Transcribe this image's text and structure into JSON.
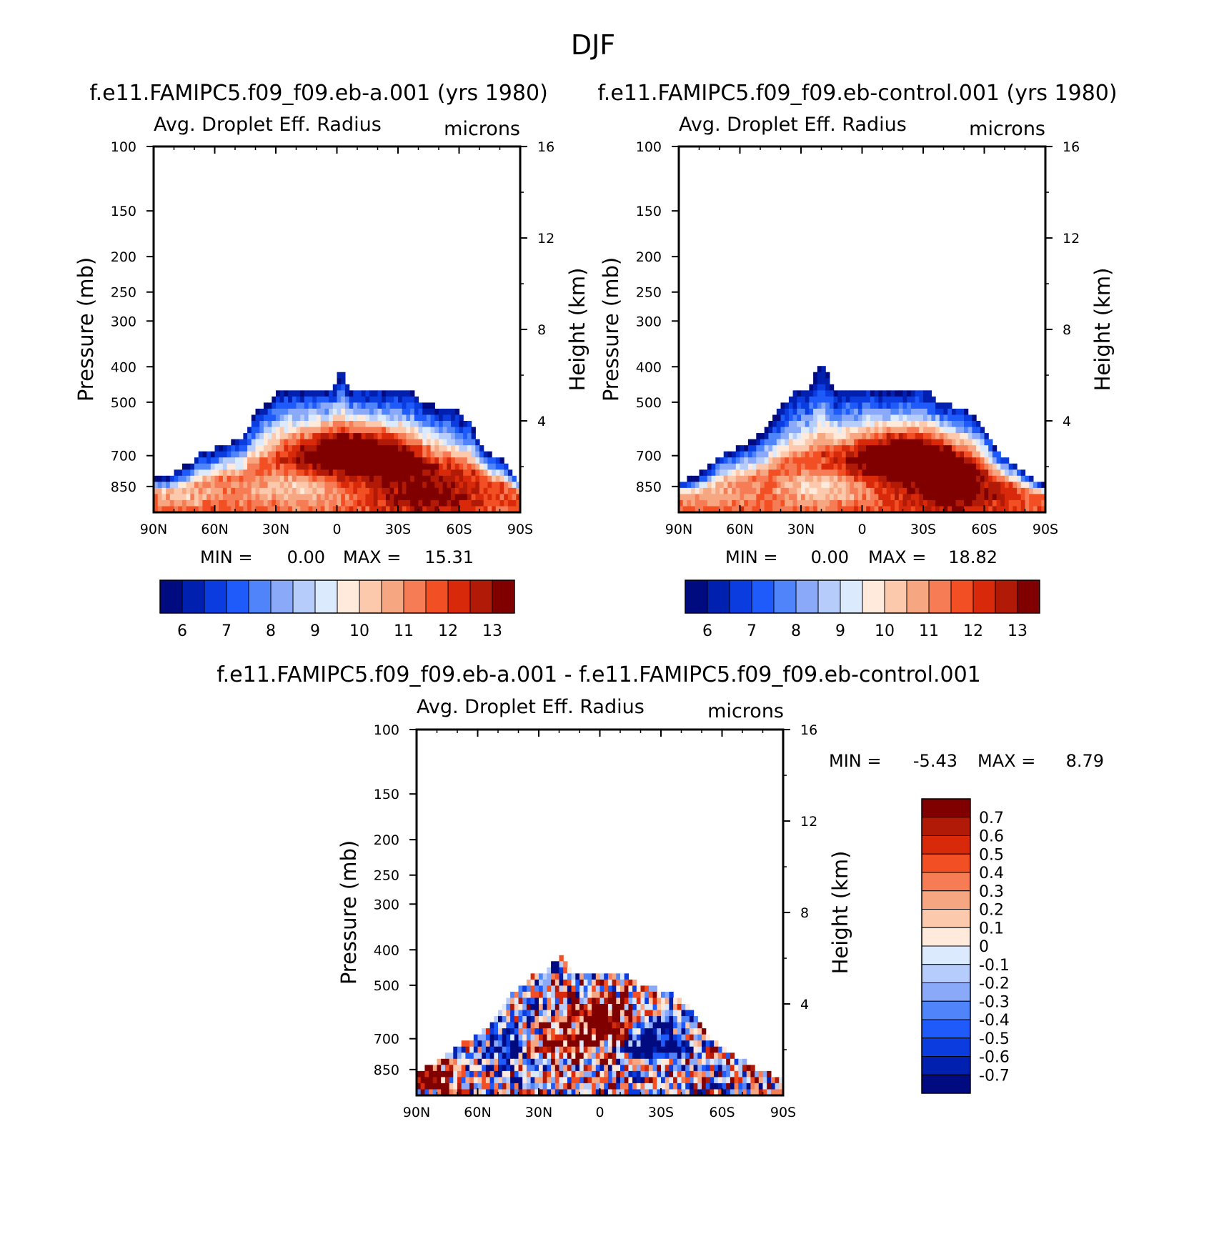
{
  "page": {
    "title": "DJF",
    "diff_title": "f.e11.FAMIPC5.f09_f09.eb-a.001 - f.e11.FAMIPC5.f09_f09.eb-control.001"
  },
  "chart_data": [
    {
      "type": "heatmap",
      "id": "panel1",
      "title": "f.e11.FAMIPC5.f09_f09.eb-a.001 (yrs 1980)",
      "left_string": "Avg. Droplet Eff. Radius",
      "right_string": "microns",
      "xlabel": "",
      "ylabel": "Pressure (mb)",
      "ylabel_right": "Height (km)",
      "x_ticks": [
        "90N",
        "60N",
        "30N",
        "0",
        "30S",
        "60S",
        "90S"
      ],
      "y_ticks": [
        "100",
        "150",
        "200",
        "250",
        "300",
        "400",
        "500",
        "700",
        "850"
      ],
      "y_ticks_right": [
        "16",
        "12",
        "8",
        "4"
      ],
      "ylim": [
        1000,
        100
      ],
      "stats": {
        "min_label": "MIN =",
        "min": "0.00",
        "max_label": "MAX =",
        "max": "15.31"
      },
      "colorbar": {
        "orientation": "horizontal",
        "labels": [
          "6",
          "7",
          "8",
          "9",
          "10",
          "11",
          "12",
          "13"
        ],
        "levels": [
          5.5,
          6,
          6.5,
          7,
          7.5,
          8,
          8.5,
          9,
          9.5,
          10,
          10.5,
          11,
          11.5,
          12,
          12.5,
          13,
          13.5
        ]
      },
      "cloud_top_pressure_mb": [
        800,
        800,
        790,
        760,
        740,
        720,
        680,
        680,
        660,
        650,
        640,
        620,
        560,
        520,
        500,
        470,
        460,
        460,
        460,
        460,
        460,
        460,
        460,
        400,
        460,
        460,
        460,
        460,
        460,
        460,
        460,
        460,
        470,
        500,
        500,
        520,
        520,
        520,
        560,
        560,
        640,
        680,
        700,
        720,
        780,
        820
      ],
      "warm_core": [
        {
          "lat": 3,
          "p": 650,
          "peak": 13.5
        },
        {
          "lat": -22,
          "p": 695,
          "peak": 13.3
        }
      ],
      "near_surface_max": {
        "lat": -45,
        "value": 12.5
      }
    },
    {
      "type": "heatmap",
      "id": "panel2",
      "title": "f.e11.FAMIPC5.f09_f09.eb-control.001 (yrs 1980)",
      "left_string": "Avg. Droplet Eff. Radius",
      "right_string": "microns",
      "xlabel": "",
      "ylabel": "Pressure (mb)",
      "ylabel_right": "Height (km)",
      "x_ticks": [
        "90N",
        "60N",
        "30N",
        "0",
        "30S",
        "60S",
        "90S"
      ],
      "y_ticks": [
        "100",
        "150",
        "200",
        "250",
        "300",
        "400",
        "500",
        "700",
        "850"
      ],
      "y_ticks_right": [
        "16",
        "12",
        "8",
        "4"
      ],
      "ylim": [
        1000,
        100
      ],
      "stats": {
        "min_label": "MIN =",
        "min": "0.00",
        "max_label": "MAX =",
        "max": "18.82"
      },
      "colorbar": {
        "orientation": "horizontal",
        "labels": [
          "6",
          "7",
          "8",
          "9",
          "10",
          "11",
          "12",
          "13"
        ],
        "levels": [
          5.5,
          6,
          6.5,
          7,
          7.5,
          8,
          8.5,
          9,
          9.5,
          10,
          10.5,
          11,
          11.5,
          12,
          12.5,
          13,
          13.5
        ]
      },
      "cloud_top_pressure_mb": [
        820,
        810,
        800,
        770,
        740,
        700,
        680,
        670,
        650,
        640,
        610,
        580,
        540,
        500,
        470,
        460,
        460,
        400,
        400,
        460,
        460,
        460,
        460,
        460,
        460,
        460,
        460,
        460,
        460,
        460,
        460,
        470,
        500,
        500,
        520,
        520,
        540,
        560,
        620,
        680,
        700,
        730,
        760,
        790,
        820,
        840
      ],
      "warm_core": [
        {
          "lat": -15,
          "p": 680,
          "peak": 13.5
        },
        {
          "lat": -35,
          "p": 720,
          "peak": 13.2
        }
      ],
      "near_surface_max": {
        "lat": -45,
        "value": 12.5
      }
    },
    {
      "type": "heatmap",
      "id": "panel3",
      "title": "f.e11.FAMIPC5.f09_f09.eb-a.001 - f.e11.FAMIPC5.f09_f09.eb-control.001",
      "left_string": "Avg. Droplet Eff. Radius",
      "right_string": "microns",
      "xlabel": "",
      "ylabel": "Pressure (mb)",
      "ylabel_right": "Height (km)",
      "x_ticks": [
        "90N",
        "60N",
        "30N",
        "0",
        "30S",
        "60S",
        "90S"
      ],
      "y_ticks": [
        "100",
        "150",
        "200",
        "250",
        "300",
        "400",
        "500",
        "700",
        "850"
      ],
      "y_ticks_right": [
        "16",
        "12",
        "8",
        "4"
      ],
      "ylim": [
        1000,
        100
      ],
      "stats": {
        "min_label": "MIN =",
        "min": "-5.43",
        "max_label": "MAX =",
        "max": "8.79"
      },
      "colorbar": {
        "orientation": "vertical",
        "labels": [
          "0.7",
          "0.6",
          "0.5",
          "0.4",
          "0.3",
          "0.2",
          "0.1",
          "0",
          "-0.1",
          "-0.2",
          "-0.3",
          "-0.4",
          "-0.5",
          "-0.6",
          "-0.7"
        ],
        "levels": [
          -0.8,
          -0.7,
          -0.6,
          -0.5,
          -0.4,
          -0.3,
          -0.2,
          -0.1,
          0,
          0.1,
          0.2,
          0.3,
          0.4,
          0.5,
          0.6,
          0.7,
          0.8
        ]
      },
      "cloud_top_pressure_mb": [
        850,
        840,
        820,
        790,
        760,
        730,
        710,
        690,
        670,
        640,
        600,
        560,
        520,
        500,
        470,
        460,
        460,
        430,
        410,
        460,
        460,
        460,
        460,
        460,
        460,
        460,
        470,
        490,
        500,
        500,
        520,
        520,
        540,
        560,
        600,
        650,
        690,
        720,
        750,
        780,
        800,
        830,
        850,
        870,
        880,
        900
      ],
      "features": [
        {
          "lat": -5,
          "p": 640,
          "value": 0.8
        },
        {
          "lat": 20,
          "p": 720,
          "value": 0.6
        },
        {
          "lat": -25,
          "p": 700,
          "value": -0.8
        },
        {
          "lat": 45,
          "p": 740,
          "value": -0.5
        },
        {
          "lat": 85,
          "p": 880,
          "value": 0.8
        }
      ]
    }
  ],
  "colors": {
    "palette": [
      "#000b80",
      "#0020b0",
      "#0a3ce0",
      "#1f5afa",
      "#4f84fa",
      "#8aa9f8",
      "#b6ccfa",
      "#dbeafd",
      "#ffeadb",
      "#fcc9ad",
      "#f7a682",
      "#f57c55",
      "#f24f24",
      "#d82a0a",
      "#b01a06",
      "#800000"
    ],
    "missing": "#ffffff"
  }
}
